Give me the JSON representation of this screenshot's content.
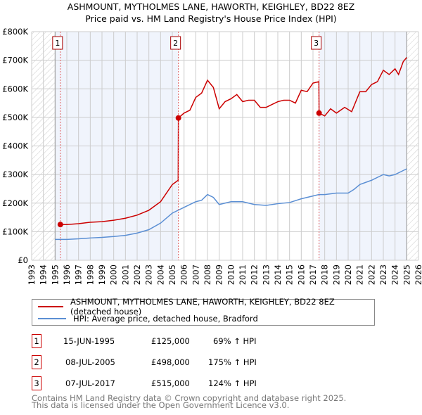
{
  "chart_data": {
    "type": "line",
    "title": "ASHMOUNT, MYTHOLMES LANE, HAWORTH, KEIGHLEY, BD22 8EZ",
    "subtitle": "Price paid vs. HM Land Registry's House Price Index (HPI)",
    "xlim": [
      1993,
      2026
    ],
    "ylim": [
      0,
      800000
    ],
    "x_ticks": [
      "1993",
      "1994",
      "1995",
      "1996",
      "1997",
      "1998",
      "1999",
      "2000",
      "2001",
      "2002",
      "2003",
      "2004",
      "2005",
      "2006",
      "2007",
      "2008",
      "2009",
      "2010",
      "2011",
      "2012",
      "2013",
      "2014",
      "2015",
      "2016",
      "2017",
      "2018",
      "2019",
      "2020",
      "2021",
      "2022",
      "2023",
      "2024",
      "2025",
      "2026"
    ],
    "y_ticks": [
      {
        "v": 0,
        "label": "£0"
      },
      {
        "v": 100000,
        "label": "£100K"
      },
      {
        "v": 200000,
        "label": "£200K"
      },
      {
        "v": 300000,
        "label": "£300K"
      },
      {
        "v": 400000,
        "label": "£400K"
      },
      {
        "v": 500000,
        "label": "£500K"
      },
      {
        "v": 600000,
        "label": "£600K"
      },
      {
        "v": 700000,
        "label": "£700K"
      },
      {
        "v": 800000,
        "label": "£800K"
      }
    ],
    "grid": true,
    "series": [
      {
        "name": "ASHMOUNT, MYTHOLMES LANE, HAWORTH, KEIGHLEY, BD22 8EZ (detached house)",
        "color": "#cc0000",
        "points": [
          [
            1995.45,
            125000
          ],
          [
            1996,
            125000
          ],
          [
            1997,
            128000
          ],
          [
            1998,
            133000
          ],
          [
            1999,
            135000
          ],
          [
            2000,
            140000
          ],
          [
            2001,
            147000
          ],
          [
            2002,
            158000
          ],
          [
            2003,
            175000
          ],
          [
            2004,
            205000
          ],
          [
            2005,
            265000
          ],
          [
            2005.5,
            280000
          ],
          [
            2005.52,
            498000
          ],
          [
            2006,
            515000
          ],
          [
            2006.5,
            525000
          ],
          [
            2007,
            570000
          ],
          [
            2007.5,
            585000
          ],
          [
            2008,
            630000
          ],
          [
            2008.5,
            605000
          ],
          [
            2009,
            530000
          ],
          [
            2009.5,
            555000
          ],
          [
            2010,
            565000
          ],
          [
            2010.5,
            580000
          ],
          [
            2011,
            555000
          ],
          [
            2011.5,
            560000
          ],
          [
            2012,
            560000
          ],
          [
            2012.5,
            535000
          ],
          [
            2013,
            535000
          ],
          [
            2013.5,
            545000
          ],
          [
            2014,
            555000
          ],
          [
            2014.5,
            560000
          ],
          [
            2015,
            560000
          ],
          [
            2015.5,
            550000
          ],
          [
            2016,
            595000
          ],
          [
            2016.5,
            590000
          ],
          [
            2017,
            620000
          ],
          [
            2017.5,
            625000
          ],
          [
            2017.52,
            515000
          ],
          [
            2018,
            505000
          ],
          [
            2018.5,
            530000
          ],
          [
            2019,
            515000
          ],
          [
            2019.7,
            535000
          ],
          [
            2020.3,
            520000
          ],
          [
            2021,
            590000
          ],
          [
            2021.5,
            590000
          ],
          [
            2022,
            615000
          ],
          [
            2022.5,
            625000
          ],
          [
            2023,
            665000
          ],
          [
            2023.5,
            650000
          ],
          [
            2024,
            670000
          ],
          [
            2024.3,
            650000
          ],
          [
            2024.7,
            695000
          ],
          [
            2025,
            710000
          ]
        ]
      },
      {
        "name": "HPI: Average price, detached house, Bradford",
        "color": "#5b8fd4",
        "points": [
          [
            1995,
            73000
          ],
          [
            1996,
            73000
          ],
          [
            1997,
            75000
          ],
          [
            1998,
            78000
          ],
          [
            1999,
            80000
          ],
          [
            2000,
            83000
          ],
          [
            2001,
            87000
          ],
          [
            2002,
            95000
          ],
          [
            2003,
            107000
          ],
          [
            2004,
            130000
          ],
          [
            2005,
            165000
          ],
          [
            2006,
            185000
          ],
          [
            2007,
            205000
          ],
          [
            2007.5,
            210000
          ],
          [
            2008,
            230000
          ],
          [
            2008.5,
            220000
          ],
          [
            2009,
            195000
          ],
          [
            2009.5,
            200000
          ],
          [
            2010,
            205000
          ],
          [
            2011,
            205000
          ],
          [
            2012,
            195000
          ],
          [
            2013,
            192000
          ],
          [
            2014,
            198000
          ],
          [
            2015,
            202000
          ],
          [
            2016,
            215000
          ],
          [
            2017,
            225000
          ],
          [
            2017.5,
            230000
          ],
          [
            2018,
            230000
          ],
          [
            2019,
            235000
          ],
          [
            2020,
            235000
          ],
          [
            2020.5,
            248000
          ],
          [
            2021,
            265000
          ],
          [
            2022,
            280000
          ],
          [
            2023,
            300000
          ],
          [
            2023.5,
            295000
          ],
          [
            2024,
            300000
          ],
          [
            2025,
            320000
          ]
        ]
      }
    ],
    "sales": [
      {
        "label": "1",
        "x": 1995.45,
        "y": 125000
      },
      {
        "label": "2",
        "x": 2005.52,
        "y": 498000
      },
      {
        "label": "3",
        "x": 2017.52,
        "y": 515000
      }
    ]
  },
  "legend": {
    "property_label": "ASHMOUNT, MYTHOLMES LANE, HAWORTH, KEIGHLEY, BD22 8EZ (detached house)",
    "hpi_label": "HPI: Average price, detached house, Bradford"
  },
  "transactions": [
    {
      "num": "1",
      "date": "15-JUN-1995",
      "price": "£125,000",
      "hpi": "69% ↑ HPI"
    },
    {
      "num": "2",
      "date": "08-JUL-2005",
      "price": "£498,000",
      "hpi": "175% ↑ HPI"
    },
    {
      "num": "3",
      "date": "07-JUL-2017",
      "price": "£515,000",
      "hpi": "124% ↑ HPI"
    }
  ],
  "footer": {
    "line1": "Contains HM Land Registry data © Crown copyright and database right 2025.",
    "line2": "This data is licensed under the Open Government Licence v3.0."
  }
}
